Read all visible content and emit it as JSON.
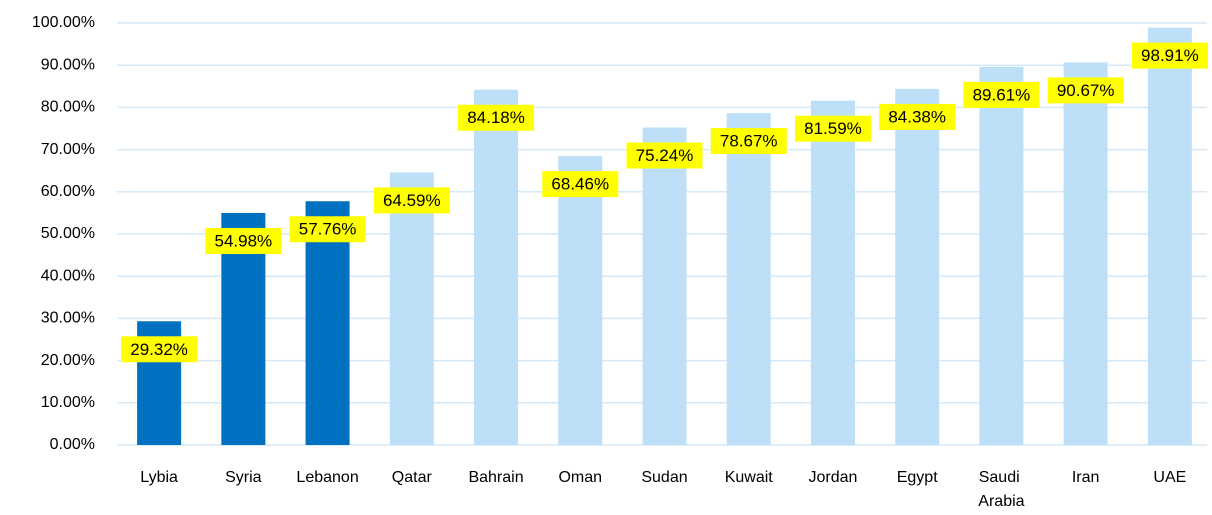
{
  "chart_data": {
    "type": "bar",
    "categories": [
      "Lybia",
      "Syria",
      "Lebanon",
      "Qatar",
      "Bahrain",
      "Oman",
      "Sudan",
      "Kuwait",
      "Jordan",
      "Egypt",
      "Saudi Arabia",
      "Iran",
      "UAE"
    ],
    "values": [
      29.32,
      54.98,
      57.76,
      64.59,
      84.18,
      68.46,
      75.24,
      78.67,
      81.59,
      84.38,
      89.61,
      90.67,
      98.91
    ],
    "value_labels": [
      "29.32%",
      "54.98%",
      "57.76%",
      "64.59%",
      "84.18%",
      "68.46%",
      "75.24%",
      "78.67%",
      "81.59%",
      "84.38%",
      "89.61%",
      "90.67%",
      "98.91%"
    ],
    "colors": [
      "#0070c0",
      "#0070c0",
      "#0070c0",
      "#bde0f8",
      "#bde0f8",
      "#bde0f8",
      "#bde0f8",
      "#bde0f8",
      "#bde0f8",
      "#bde0f8",
      "#bde0f8",
      "#bde0f8",
      "#bde0f8"
    ],
    "label_background": "#ffff00",
    "label_color": "#2e75b6",
    "ylim": [
      0,
      100
    ],
    "yticks": [
      {
        "value": 0,
        "label": "0.00%"
      },
      {
        "value": 10,
        "label": "10.00%"
      },
      {
        "value": 20,
        "label": "20.00%"
      },
      {
        "value": 30,
        "label": "30.00%"
      },
      {
        "value": 40,
        "label": "40.00%"
      },
      {
        "value": 50,
        "label": "50.00%"
      },
      {
        "value": 60,
        "label": "60.00%"
      },
      {
        "value": 70,
        "label": "70.00%"
      },
      {
        "value": 80,
        "label": "80.00%"
      },
      {
        "value": 90,
        "label": "90.00%"
      },
      {
        "value": 100,
        "label": "100.00%"
      }
    ],
    "grid": true
  }
}
